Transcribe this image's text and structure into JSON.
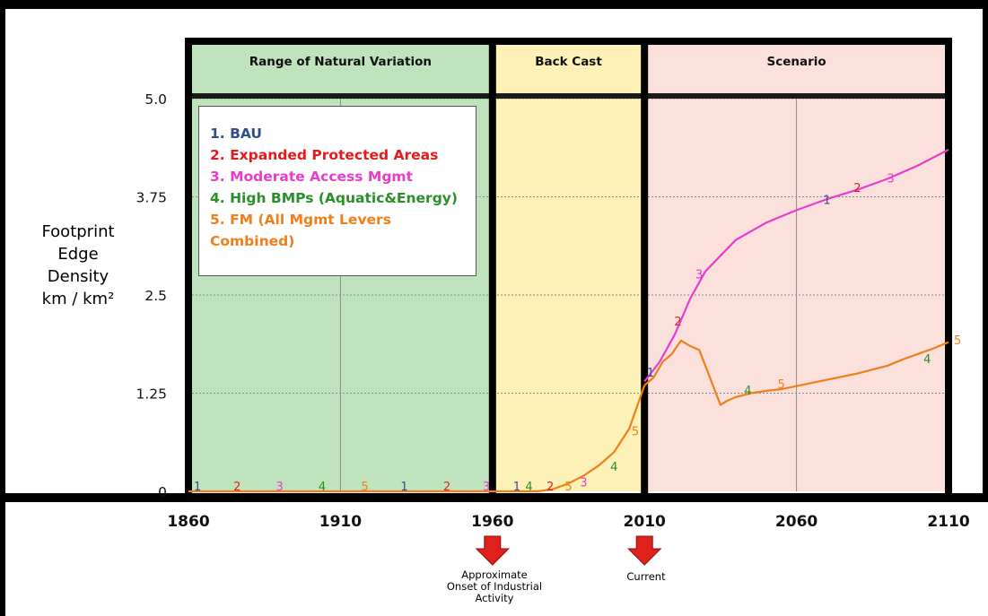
{
  "chart_data": {
    "type": "line",
    "xlim": [
      1860,
      2110
    ],
    "ylim": [
      0,
      5.0
    ],
    "x_ticks": [
      "1860",
      "1910",
      "1960",
      "2010",
      "2060",
      "2110"
    ],
    "y_ticks": [
      "0",
      "1.25",
      "2.5",
      "3.75",
      "5.0"
    ],
    "ylabel_lines": [
      "Footprint",
      "Edge",
      "Density",
      "km / km²"
    ],
    "grid": true,
    "periods": [
      {
        "label": "Range of Natural Variation",
        "start": 1860,
        "end": 1960,
        "color": "#bfe3bc"
      },
      {
        "label": "Back Cast",
        "start": 1960,
        "end": 2010,
        "color": "#fdf1b8"
      },
      {
        "label": "Scenario",
        "start": 2010,
        "end": 2110,
        "color": "#fbe0dc"
      }
    ],
    "legend": [
      {
        "label": "1. BAU",
        "color": "#2e4f8c"
      },
      {
        "label": "2. Expanded Protected Areas",
        "color": "#e41a1c"
      },
      {
        "label": "3. Moderate Access Mgmt",
        "color": "#e83ccf"
      },
      {
        "label": "4. High BMPs (Aquatic&Energy)",
        "color": "#2a8f2a"
      },
      {
        "label": "5. FM (All Mgmt Levers\nCombined)",
        "color": "#ef7f1a"
      }
    ],
    "series": [
      {
        "color": "#ef7f1a",
        "x": [
          1860,
          1960,
          1970,
          1975,
          1980,
          1985,
          1990,
          1995,
          2000,
          2005,
          2010
        ],
        "y": [
          0,
          0,
          0,
          0,
          0.03,
          0.1,
          0.2,
          0.33,
          0.5,
          0.8,
          1.35
        ]
      },
      {
        "color": "#e83ccf",
        "x": [
          2010,
          2015,
          2020,
          2025,
          2030,
          2035,
          2040,
          2050,
          2060,
          2070,
          2080,
          2090,
          2100,
          2110
        ],
        "y": [
          1.4,
          1.65,
          2.0,
          2.45,
          2.8,
          3.0,
          3.2,
          3.42,
          3.58,
          3.72,
          3.84,
          3.98,
          4.15,
          4.35
        ]
      },
      {
        "color": "#ef7f1a",
        "x": [
          2010,
          2013,
          2016,
          2019,
          2022,
          2025,
          2028,
          2030,
          2033,
          2035,
          2037,
          2040,
          2045,
          2050,
          2055,
          2060,
          2065,
          2070,
          2075,
          2080,
          2085,
          2090,
          2095,
          2100,
          2105,
          2110
        ],
        "y": [
          1.35,
          1.45,
          1.65,
          1.75,
          1.92,
          1.85,
          1.8,
          1.6,
          1.3,
          1.1,
          1.15,
          1.2,
          1.25,
          1.28,
          1.3,
          1.34,
          1.38,
          1.42,
          1.46,
          1.5,
          1.55,
          1.6,
          1.68,
          1.75,
          1.82,
          1.9
        ]
      }
    ],
    "markers": [
      {
        "text": "1",
        "x": 1863,
        "y": 0,
        "color": "#2e4f8c"
      },
      {
        "text": "2",
        "x": 1876,
        "y": 0,
        "color": "#e41a1c"
      },
      {
        "text": "3",
        "x": 1890,
        "y": 0,
        "color": "#e83ccf"
      },
      {
        "text": "4",
        "x": 1904,
        "y": 0,
        "color": "#2a8f2a"
      },
      {
        "text": "5",
        "x": 1918,
        "y": 0,
        "color": "#ef7f1a"
      },
      {
        "text": "1",
        "x": 1931,
        "y": 0,
        "color": "#2e4f8c"
      },
      {
        "text": "2",
        "x": 1945,
        "y": 0,
        "color": "#e41a1c"
      },
      {
        "text": "3",
        "x": 1958,
        "y": 0,
        "color": "#e83ccf"
      },
      {
        "text": "4",
        "x": 1972,
        "y": 0,
        "color": "#2a8f2a"
      },
      {
        "text": "5",
        "x": 1985,
        "y": 0,
        "color": "#ef7f1a"
      },
      {
        "text": "1",
        "x": 1968,
        "y": 0,
        "color": "#2e4f8c"
      },
      {
        "text": "2",
        "x": 1979,
        "y": 0,
        "color": "#e41a1c"
      },
      {
        "text": "3",
        "x": 1990,
        "y": 0.05,
        "color": "#e83ccf"
      },
      {
        "text": "4",
        "x": 2000,
        "y": 0.25,
        "color": "#2a8f2a"
      },
      {
        "text": "5",
        "x": 2007,
        "y": 0.7,
        "color": "#ef7f1a"
      },
      {
        "text": "1",
        "x": 2012,
        "y": 1.45,
        "color": "#2e4f8c"
      },
      {
        "text": "2",
        "x": 2021,
        "y": 2.1,
        "color": "#e41a1c"
      },
      {
        "text": "3",
        "x": 2028,
        "y": 2.7,
        "color": "#e83ccf"
      },
      {
        "text": "1",
        "x": 2070,
        "y": 3.65,
        "color": "#2e4f8c"
      },
      {
        "text": "2",
        "x": 2080,
        "y": 3.8,
        "color": "#e41a1c"
      },
      {
        "text": "3",
        "x": 2091,
        "y": 3.92,
        "color": "#e83ccf"
      },
      {
        "text": "4",
        "x": 2044,
        "y": 1.22,
        "color": "#2a8f2a"
      },
      {
        "text": "5",
        "x": 2055,
        "y": 1.3,
        "color": "#ef7f1a"
      },
      {
        "text": "4",
        "x": 2103,
        "y": 1.62,
        "color": "#2a8f2a"
      },
      {
        "text": "5",
        "x": 2113,
        "y": 1.86,
        "color": "#ef7f1a"
      }
    ],
    "annotations": [
      {
        "text": "Approximate Onset of Industrial Activity",
        "x": 1960
      },
      {
        "text": "Current",
        "x": 2010
      }
    ],
    "arrow_color": "#e0201a"
  }
}
